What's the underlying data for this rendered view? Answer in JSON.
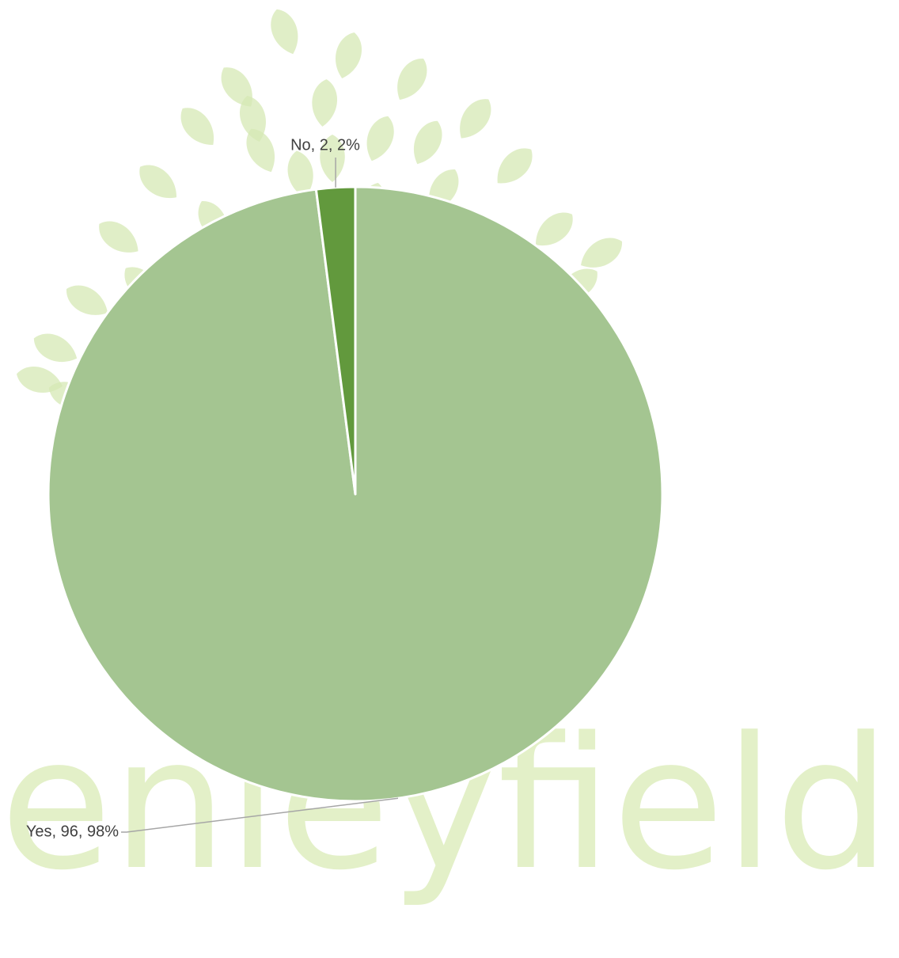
{
  "watermark": {
    "text": "enleyfields",
    "leaf_color": "#d6e8b4",
    "text_color": "#e3f0c8"
  },
  "chart_data": {
    "type": "pie",
    "title": "",
    "slices": [
      {
        "name": "Yes",
        "value": 96,
        "percent": 98,
        "label": "Yes, 96, 98%",
        "color": "#a4c591"
      },
      {
        "name": "No",
        "value": 2,
        "percent": 2,
        "label": "No, 2, 2%",
        "color": "#62993d"
      }
    ],
    "start_angle_deg": 0,
    "direction": "clockwise",
    "slice_border_color": "#ffffff",
    "leader_line_color": "#a6a6a6",
    "legend": "none"
  }
}
